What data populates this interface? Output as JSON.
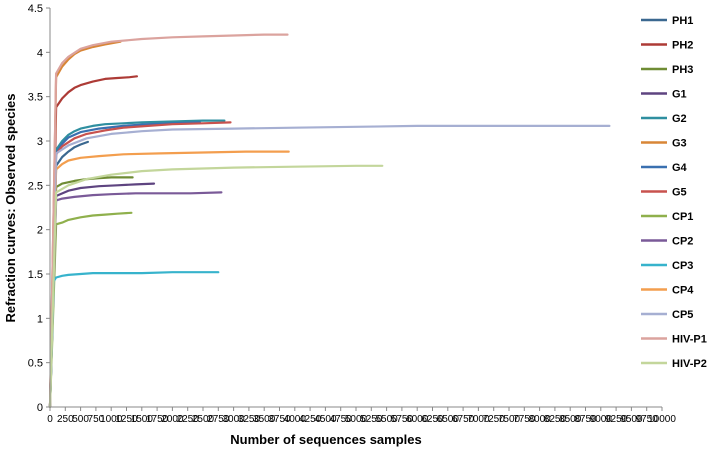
{
  "chart_data": {
    "type": "line",
    "title": "",
    "xlabel": "Number of sequences samples",
    "ylabel": "Refraction curves: Observed species",
    "xlim": [
      0,
      10000
    ],
    "ylim": [
      0,
      4.5
    ],
    "x_ticks": [
      0,
      250,
      500,
      750,
      1000,
      1250,
      1500,
      1750,
      2000,
      2250,
      2500,
      2750,
      3000,
      3250,
      3500,
      3750,
      4000,
      4250,
      4500,
      4750,
      5000,
      5250,
      5500,
      5750,
      6000,
      6250,
      6500,
      6750,
      7000,
      7250,
      7500,
      7750,
      8000,
      8250,
      8500,
      8750,
      9000,
      9250,
      9500,
      9750,
      10000
    ],
    "x_tick_labels": [
      "0",
      "250",
      "500",
      "750",
      "1000",
      "1250",
      "1500",
      "1750",
      "2000",
      "2250",
      "2500",
      "2750",
      "3000",
      "3250",
      "3500",
      "3750",
      "4000",
      "4250",
      "4500",
      "4750",
      "5000",
      "5250",
      "5500",
      "5750",
      "6000",
      "6250",
      "6500",
      "6750",
      "7000",
      "7250",
      "7500",
      "7750",
      "8000",
      "8250",
      "8500",
      "8750",
      "9000",
      "9250",
      "9500",
      "9750",
      "10000"
    ],
    "y_ticks": [
      0,
      0.5,
      1,
      1.5,
      2,
      2.5,
      3,
      3.5,
      4,
      4.5
    ],
    "y_tick_labels": [
      "0",
      "0.5",
      "1",
      "1.5",
      "2",
      "2.5",
      "3",
      "3.5",
      "4",
      "4.5"
    ],
    "grid": false,
    "legend_position": "right",
    "series": [
      {
        "name": "PH1",
        "color": "#3b6890",
        "x": [
          0,
          100,
          200,
          300,
          400,
          500,
          620
        ],
        "y": [
          0,
          2.72,
          2.82,
          2.88,
          2.93,
          2.96,
          2.99
        ]
      },
      {
        "name": "PH2",
        "color": "#ad3b36",
        "x": [
          0,
          100,
          200,
          300,
          400,
          500,
          700,
          900,
          1100,
          1300,
          1420
        ],
        "y": [
          0,
          3.38,
          3.48,
          3.55,
          3.6,
          3.63,
          3.67,
          3.7,
          3.71,
          3.72,
          3.73
        ]
      },
      {
        "name": "PH3",
        "color": "#6f8c34",
        "x": [
          0,
          100,
          200,
          400,
          600,
          800,
          1000,
          1200,
          1350
        ],
        "y": [
          0,
          2.48,
          2.52,
          2.55,
          2.57,
          2.58,
          2.59,
          2.59,
          2.59
        ]
      },
      {
        "name": "G1",
        "color": "#5e4480",
        "x": [
          0,
          100,
          300,
          500,
          800,
          1100,
          1400,
          1700
        ],
        "y": [
          0,
          2.38,
          2.44,
          2.47,
          2.49,
          2.5,
          2.51,
          2.52
        ]
      },
      {
        "name": "G2",
        "color": "#2f8fa0",
        "x": [
          0,
          100,
          200,
          300,
          400,
          500,
          700,
          900,
          1200,
          1500,
          2000,
          2500,
          2850
        ],
        "y": [
          0,
          2.9,
          3.0,
          3.07,
          3.11,
          3.14,
          3.17,
          3.19,
          3.2,
          3.21,
          3.22,
          3.23,
          3.23
        ]
      },
      {
        "name": "G3",
        "color": "#d88637",
        "x": [
          0,
          100,
          200,
          300,
          400,
          500,
          700,
          900,
          1150
        ],
        "y": [
          0,
          3.72,
          3.84,
          3.92,
          3.98,
          4.02,
          4.06,
          4.09,
          4.12
        ]
      },
      {
        "name": "G4",
        "color": "#3a70b0",
        "x": [
          0,
          100,
          200,
          300,
          500,
          800,
          1200,
          1600,
          2000,
          2450
        ],
        "y": [
          0,
          2.86,
          2.97,
          3.04,
          3.1,
          3.14,
          3.17,
          3.19,
          3.2,
          3.21
        ]
      },
      {
        "name": "G5",
        "color": "#c8524e",
        "x": [
          0,
          100,
          200,
          400,
          600,
          900,
          1200,
          1600,
          2000,
          2500,
          2950
        ],
        "y": [
          0,
          2.85,
          2.94,
          3.03,
          3.08,
          3.12,
          3.15,
          3.17,
          3.19,
          3.2,
          3.21
        ]
      },
      {
        "name": "CP1",
        "color": "#8fb04c",
        "x": [
          0,
          100,
          200,
          300,
          500,
          700,
          900,
          1100,
          1330
        ],
        "y": [
          0,
          2.06,
          2.08,
          2.11,
          2.14,
          2.16,
          2.17,
          2.18,
          2.19
        ]
      },
      {
        "name": "CP2",
        "color": "#7a5a98",
        "x": [
          0,
          100,
          200,
          400,
          700,
          1000,
          1400,
          1800,
          2300,
          2800
        ],
        "y": [
          0,
          2.33,
          2.35,
          2.37,
          2.39,
          2.4,
          2.41,
          2.41,
          2.41,
          2.42
        ]
      },
      {
        "name": "CP3",
        "color": "#37b3cc",
        "x": [
          0,
          60,
          100,
          200,
          300,
          500,
          700,
          1000,
          1500,
          2000,
          2500,
          2750
        ],
        "y": [
          0,
          1.42,
          1.46,
          1.48,
          1.49,
          1.5,
          1.51,
          1.51,
          1.51,
          1.52,
          1.52,
          1.52
        ]
      },
      {
        "name": "CP4",
        "color": "#f39e4e",
        "x": [
          0,
          100,
          200,
          300,
          500,
          800,
          1200,
          1800,
          2500,
          3200,
          3900
        ],
        "y": [
          0,
          2.68,
          2.74,
          2.78,
          2.81,
          2.83,
          2.85,
          2.86,
          2.87,
          2.88,
          2.88
        ]
      },
      {
        "name": "CP5",
        "color": "#a6afd2",
        "x": [
          0,
          100,
          300,
          600,
          1000,
          1500,
          2000,
          3000,
          4000,
          5000,
          6000,
          7000,
          8000,
          9140
        ],
        "y": [
          0,
          2.86,
          2.95,
          3.03,
          3.08,
          3.11,
          3.13,
          3.14,
          3.15,
          3.16,
          3.17,
          3.17,
          3.17,
          3.17
        ]
      },
      {
        "name": "HIV-P1",
        "color": "#dba39e",
        "x": [
          0,
          100,
          200,
          300,
          500,
          700,
          1000,
          1500,
          2000,
          2500,
          3000,
          3500,
          3880
        ],
        "y": [
          0,
          3.76,
          3.88,
          3.95,
          4.04,
          4.08,
          4.12,
          4.15,
          4.17,
          4.18,
          4.19,
          4.2,
          4.2
        ]
      },
      {
        "name": "HIV-P2",
        "color": "#c3d69b",
        "x": [
          0,
          100,
          300,
          600,
          1000,
          1500,
          2000,
          3000,
          4000,
          5000,
          5430
        ],
        "y": [
          0,
          2.42,
          2.5,
          2.57,
          2.62,
          2.66,
          2.68,
          2.7,
          2.71,
          2.72,
          2.72
        ]
      }
    ]
  }
}
